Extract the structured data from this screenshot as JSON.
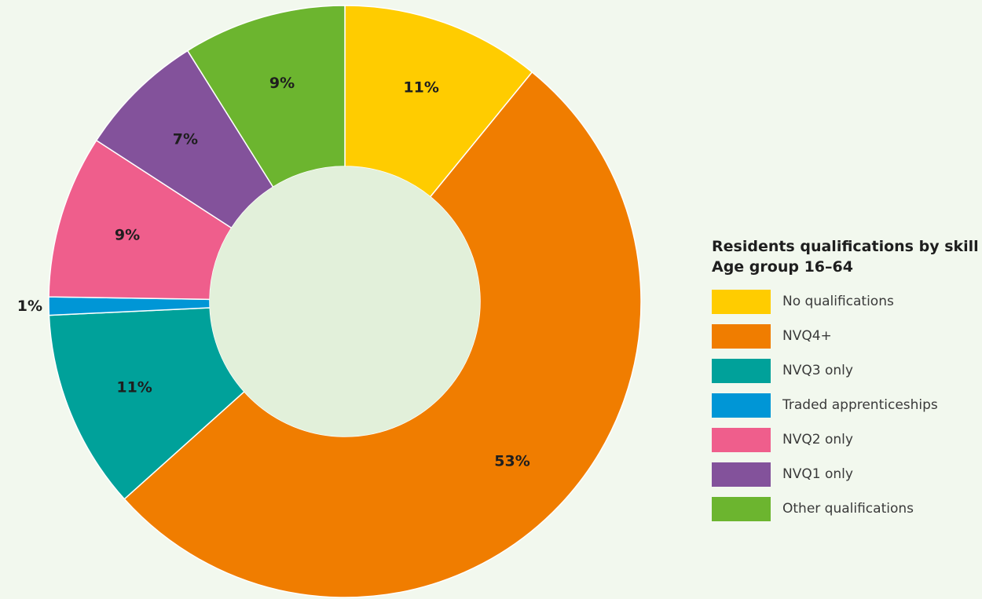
{
  "chart_data": {
    "type": "pie",
    "style": "donut",
    "legend_title": "Residents qualifications by skill",
    "legend_subtitle": "Age group 16–64",
    "legend_position": "right",
    "background_color": "#f2f8ee",
    "hole_color": "#e2f0da",
    "slices": [
      {
        "category": "No qualifications",
        "value": 11,
        "label": "11%",
        "color": "#ffcc00"
      },
      {
        "category": "NVQ4+",
        "value": 53,
        "label": "53%",
        "color": "#f07d00"
      },
      {
        "category": "NVQ3 only",
        "value": 11,
        "label": "11%",
        "color": "#00a19a"
      },
      {
        "category": "Traded apprenticeships",
        "value": 1,
        "label": "1%",
        "color": "#0096d6"
      },
      {
        "category": "NVQ2 only",
        "value": 9,
        "label": "9%",
        "color": "#ef5e8c"
      },
      {
        "category": "NVQ1 only",
        "value": 7,
        "label": "7%",
        "color": "#83529b"
      },
      {
        "category": "Other qualifications",
        "value": 9,
        "label": "9%",
        "color": "#6cb52f"
      }
    ]
  }
}
